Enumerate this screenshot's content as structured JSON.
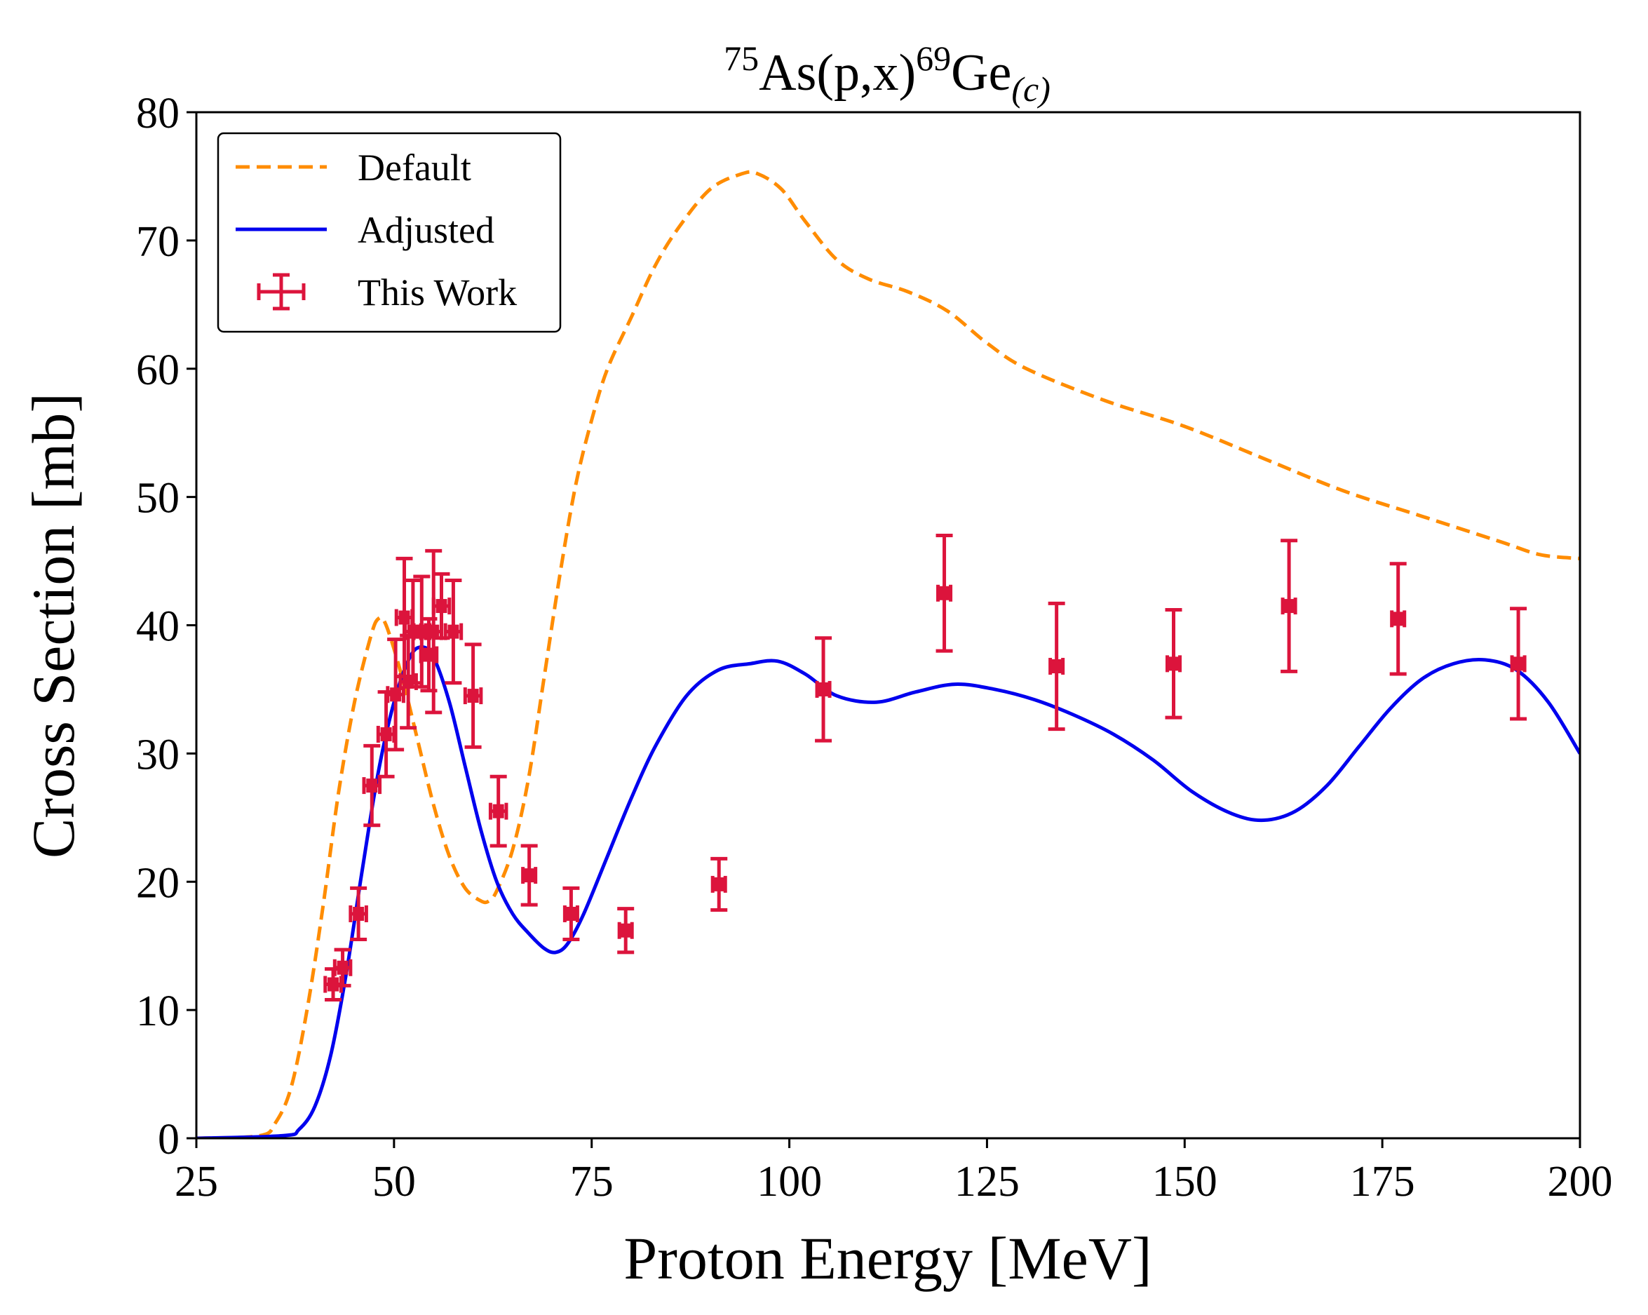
{
  "chart_data": {
    "type": "line",
    "title": {
      "mass_target": "75",
      "target": "As(p,x)",
      "mass_product": "69",
      "product": "Ge",
      "subscript": "(c)"
    },
    "xlabel": "Proton Energy [MeV]",
    "ylabel": "Cross Section [mb]",
    "xlim": [
      25,
      200
    ],
    "ylim": [
      0,
      80
    ],
    "xticks": [
      25,
      50,
      75,
      100,
      125,
      150,
      175,
      200
    ],
    "yticks": [
      0,
      10,
      20,
      30,
      40,
      50,
      60,
      70,
      80
    ],
    "grid": false,
    "legend": {
      "position": "top-left",
      "entries": [
        "Default",
        "Adjusted",
        "This Work"
      ]
    },
    "series": [
      {
        "name": "Default",
        "style": "dashed",
        "color": "#ff8c00",
        "x": [
          25,
          33,
          35,
          37,
          39,
          41,
          43,
          45,
          47,
          48,
          49,
          51,
          53,
          55,
          57,
          59,
          61,
          62,
          63,
          65,
          67,
          69,
          71,
          73,
          75,
          77,
          80,
          83,
          86,
          90,
          94,
          96,
          99,
          102,
          106,
          110,
          115,
          120,
          125,
          130,
          140,
          150,
          160,
          170,
          180,
          190,
          195,
          200
        ],
        "y": [
          0,
          0.2,
          1.2,
          4,
          10,
          18,
          27,
          34,
          39,
          40.5,
          40,
          36,
          31,
          26,
          22,
          19.5,
          18.5,
          18.5,
          19.3,
          22.5,
          28,
          36,
          44,
          51,
          56,
          60,
          64,
          68,
          71,
          74,
          75.2,
          75.2,
          74,
          71.5,
          68.5,
          67,
          66,
          64.5,
          62,
          60,
          57.5,
          55.5,
          53,
          50.5,
          48.5,
          46.5,
          45.5,
          45.2
        ]
      },
      {
        "name": "Adjusted",
        "style": "solid",
        "color": "#0000ee",
        "x": [
          25,
          36,
          38,
          40,
          42,
          44,
          46,
          48,
          50,
          52,
          53.5,
          55,
          57,
          59,
          61,
          63,
          65,
          67,
          69,
          70.5,
          72,
          74,
          77,
          80,
          83,
          87,
          91,
          95,
          98.5,
          102,
          106,
          111,
          116,
          121,
          126,
          131,
          136,
          141,
          146,
          151,
          156,
          160,
          164,
          168,
          172,
          176,
          180,
          184,
          188,
          192,
          196,
          200
        ],
        "y": [
          0,
          0.2,
          0.7,
          2.5,
          6.5,
          13,
          21,
          28.5,
          34,
          37.5,
          38.3,
          37.5,
          34,
          29,
          24,
          20,
          17.5,
          16,
          14.8,
          14.5,
          15.2,
          17.5,
          22,
          26.5,
          30.5,
          34.5,
          36.5,
          37,
          37.2,
          36.2,
          34.5,
          34,
          34.8,
          35.4,
          35,
          34.2,
          33,
          31.5,
          29.5,
          27,
          25.3,
          24.8,
          25.5,
          27.5,
          30.5,
          33.5,
          35.8,
          37,
          37.3,
          36.5,
          34,
          30
        ]
      },
      {
        "name": "This Work",
        "style": "errorbar",
        "color": "#dc143c",
        "points": [
          {
            "x": 42.3,
            "y": 12.0,
            "xerr": 1.0,
            "yerr": 1.2
          },
          {
            "x": 43.5,
            "y": 13.3,
            "xerr": 1.0,
            "yerr": 1.4
          },
          {
            "x": 45.5,
            "y": 17.5,
            "xerr": 1.0,
            "yerr": 2.0
          },
          {
            "x": 47.2,
            "y": 27.5,
            "xerr": 1.0,
            "yerr": 3.1
          },
          {
            "x": 49.0,
            "y": 31.5,
            "xerr": 1.0,
            "yerr": 3.3
          },
          {
            "x": 50.2,
            "y": 34.6,
            "xerr": 1.0,
            "yerr": 4.3
          },
          {
            "x": 51.3,
            "y": 40.6,
            "xerr": 1.0,
            "yerr": 4.6
          },
          {
            "x": 51.8,
            "y": 35.6,
            "xerr": 1.0,
            "yerr": 3.6
          },
          {
            "x": 52.4,
            "y": 39.5,
            "xerr": 1.0,
            "yerr": 4.0
          },
          {
            "x": 53.5,
            "y": 39.5,
            "xerr": 1.0,
            "yerr": 4.3
          },
          {
            "x": 54.4,
            "y": 37.7,
            "xerr": 1.0,
            "yerr": 2.8
          },
          {
            "x": 55.0,
            "y": 39.5,
            "xerr": 1.0,
            "yerr": 6.3
          },
          {
            "x": 56.0,
            "y": 41.5,
            "xerr": 1.0,
            "yerr": 2.5
          },
          {
            "x": 57.5,
            "y": 39.5,
            "xerr": 1.0,
            "yerr": 4.0
          },
          {
            "x": 60.0,
            "y": 34.5,
            "xerr": 1.0,
            "yerr": 4.0
          },
          {
            "x": 63.2,
            "y": 25.5,
            "xerr": 1.0,
            "yerr": 2.7
          },
          {
            "x": 67.1,
            "y": 20.5,
            "xerr": 0.8,
            "yerr": 2.3
          },
          {
            "x": 72.4,
            "y": 17.5,
            "xerr": 0.8,
            "yerr": 2.0
          },
          {
            "x": 79.3,
            "y": 16.2,
            "xerr": 0.8,
            "yerr": 1.7
          },
          {
            "x": 91.1,
            "y": 19.8,
            "xerr": 0.8,
            "yerr": 2.0
          },
          {
            "x": 104.3,
            "y": 35.0,
            "xerr": 0.8,
            "yerr": 4.0
          },
          {
            "x": 119.6,
            "y": 42.5,
            "xerr": 0.8,
            "yerr": 4.5
          },
          {
            "x": 133.8,
            "y": 36.8,
            "xerr": 0.8,
            "yerr": 4.9
          },
          {
            "x": 148.6,
            "y": 37.0,
            "xerr": 0.8,
            "yerr": 4.2
          },
          {
            "x": 163.2,
            "y": 41.5,
            "xerr": 0.8,
            "yerr": 5.1
          },
          {
            "x": 177.0,
            "y": 40.5,
            "xerr": 0.8,
            "yerr": 4.3
          },
          {
            "x": 192.2,
            "y": 37.0,
            "xerr": 0.8,
            "yerr": 4.3
          }
        ]
      }
    ]
  }
}
